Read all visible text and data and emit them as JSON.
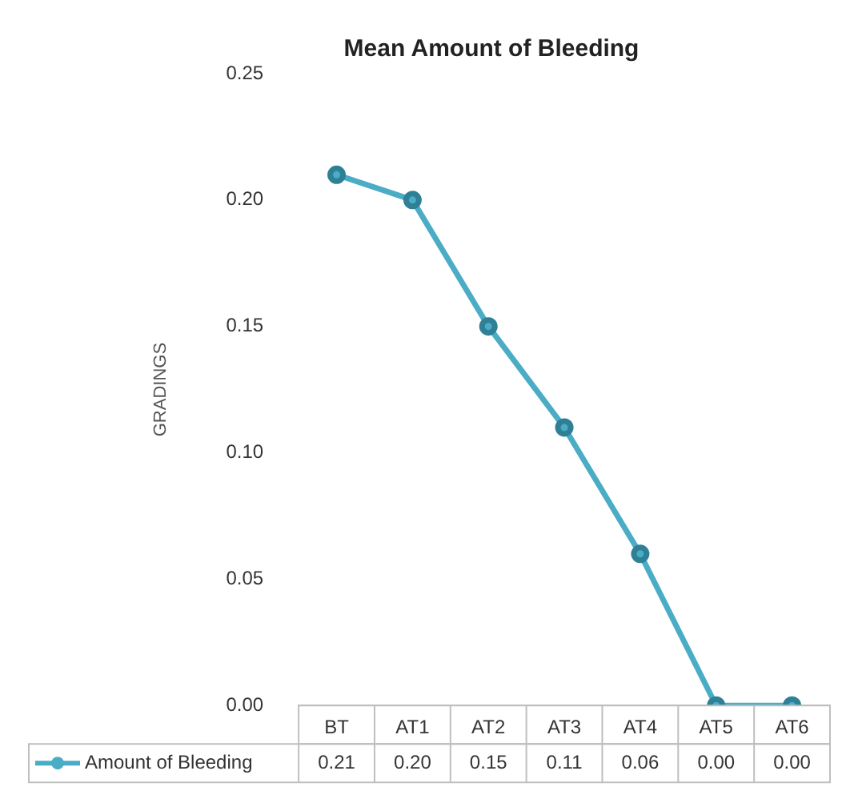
{
  "chart_data": {
    "type": "line",
    "title": "Mean Amount of Bleeding",
    "ylabel": "GRADINGS",
    "categories": [
      "BT",
      "AT1",
      "AT2",
      "AT3",
      "AT4",
      "AT5",
      "AT6"
    ],
    "series": [
      {
        "name": "Amount of Bleeding",
        "color": "#4bacc6",
        "values": [
          0.21,
          0.2,
          0.15,
          0.11,
          0.06,
          0.0,
          0.0
        ]
      }
    ],
    "value_labels": [
      "0.21",
      "0.20",
      "0.15",
      "0.11",
      "0.06",
      "0.00",
      "0.00"
    ],
    "ylim": [
      0,
      0.25
    ],
    "yticks": [
      {
        "value": 0,
        "label": "0.00"
      },
      {
        "value": 0.05,
        "label": "0.05"
      },
      {
        "value": 0.1,
        "label": "0.10"
      },
      {
        "value": 0.15,
        "label": "0.15"
      },
      {
        "value": 0.2,
        "label": "0.20"
      },
      {
        "value": 0.25,
        "label": "0.25"
      }
    ],
    "grid": false,
    "legend": "bottom",
    "marker": "circle",
    "line_style": "solid"
  }
}
